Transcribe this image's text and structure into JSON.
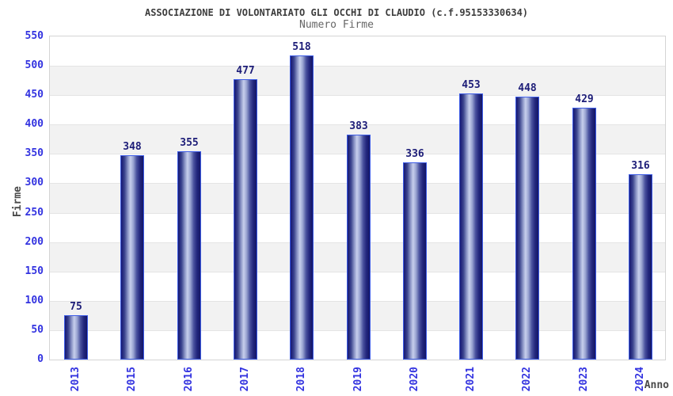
{
  "chart_data": {
    "type": "bar",
    "title": "ASSOCIAZIONE DI VOLONTARIATO GLI OCCHI DI CLAUDIO (c.f.95153330634)",
    "subtitle": "Numero Firme",
    "xlabel": "Anno",
    "ylabel": "Firme",
    "categories": [
      "2013",
      "2015",
      "2016",
      "2017",
      "2018",
      "2019",
      "2020",
      "2021",
      "2022",
      "2023",
      "2024"
    ],
    "values": [
      75,
      348,
      355,
      477,
      518,
      383,
      336,
      453,
      448,
      429,
      316
    ],
    "ylim": [
      0,
      550
    ],
    "ytick_step": 50,
    "yticks": [
      0,
      50,
      100,
      150,
      200,
      250,
      300,
      350,
      400,
      450,
      500,
      550
    ],
    "grid": "horizontal alternating bands",
    "legend_position": "none",
    "colors": {
      "tick_label_blue": "#3333e0",
      "value_label_navy": "#1d1d78",
      "bar_border_blue": "#3d5ce6",
      "bar_dark_navy": "#171a74",
      "bar_light_center": "#c7cfec",
      "band_gray": "#f2f2f2",
      "band_white": "#ffffff",
      "grid_line": "#e4e4e4",
      "plot_border": "#d4d4d4",
      "title_gray": "#3d3d3d",
      "subtitle_gray": "#666666",
      "axis_title_gray": "#4a4a4a"
    }
  }
}
